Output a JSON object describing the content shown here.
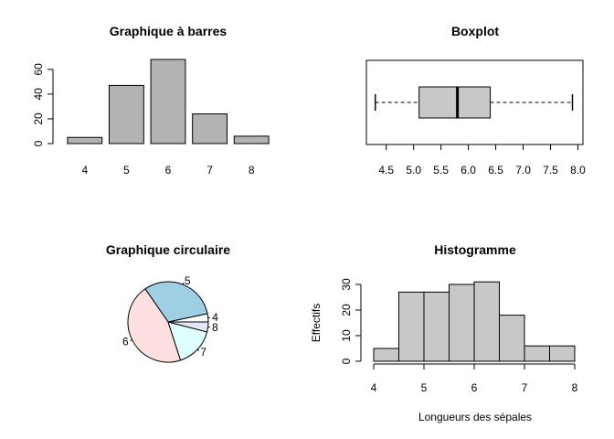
{
  "chart_data": [
    {
      "type": "bar",
      "title": "Graphique à barres",
      "categories": [
        "4",
        "5",
        "6",
        "7",
        "8"
      ],
      "values": [
        5,
        47,
        68,
        24,
        6
      ],
      "ylim": [
        0,
        70
      ],
      "yticks": [
        0,
        20,
        40,
        60
      ],
      "color": "#b3b3b3",
      "xlabel": "",
      "ylabel": ""
    },
    {
      "type": "box",
      "title": "Boxplot",
      "min": 4.3,
      "q1": 5.1,
      "median": 5.8,
      "q3": 6.4,
      "max": 7.9,
      "xlim": [
        4.2,
        8.0
      ],
      "xticks": [
        "4.5",
        "5.0",
        "5.5",
        "6.0",
        "6.5",
        "7.0",
        "7.5",
        "8.0"
      ],
      "color": "#c8c8c8"
    },
    {
      "type": "pie",
      "title": "Graphique circulaire",
      "slices": [
        {
          "label": "4",
          "value": 5,
          "color": "#ffffff"
        },
        {
          "label": "5",
          "value": 47,
          "color": "#9fcfe2"
        },
        {
          "label": "6",
          "value": 68,
          "color": "#ffe0e0"
        },
        {
          "label": "7",
          "value": 24,
          "color": "#e0ffff"
        },
        {
          "label": "8",
          "value": 6,
          "color": "#e6e6fa"
        }
      ]
    },
    {
      "type": "histogram",
      "title": "Histogramme",
      "xlabel": "Longueurs des sépales",
      "ylabel": "Effectifs",
      "bins": [
        {
          "from": 4.0,
          "to": 4.5,
          "count": 5
        },
        {
          "from": 4.5,
          "to": 5.0,
          "count": 27
        },
        {
          "from": 5.0,
          "to": 5.5,
          "count": 27
        },
        {
          "from": 5.5,
          "to": 6.0,
          "count": 30
        },
        {
          "from": 6.0,
          "to": 6.5,
          "count": 31
        },
        {
          "from": 6.5,
          "to": 7.0,
          "count": 18
        },
        {
          "from": 7.0,
          "to": 7.5,
          "count": 6
        },
        {
          "from": 7.5,
          "to": 8.0,
          "count": 6
        }
      ],
      "xlim": [
        4,
        8
      ],
      "xticks": [
        "4",
        "5",
        "6",
        "7",
        "8"
      ],
      "ylim": [
        0,
        33
      ],
      "yticks": [
        "0",
        "10",
        "20",
        "30"
      ],
      "color": "#c8c8c8"
    }
  ]
}
